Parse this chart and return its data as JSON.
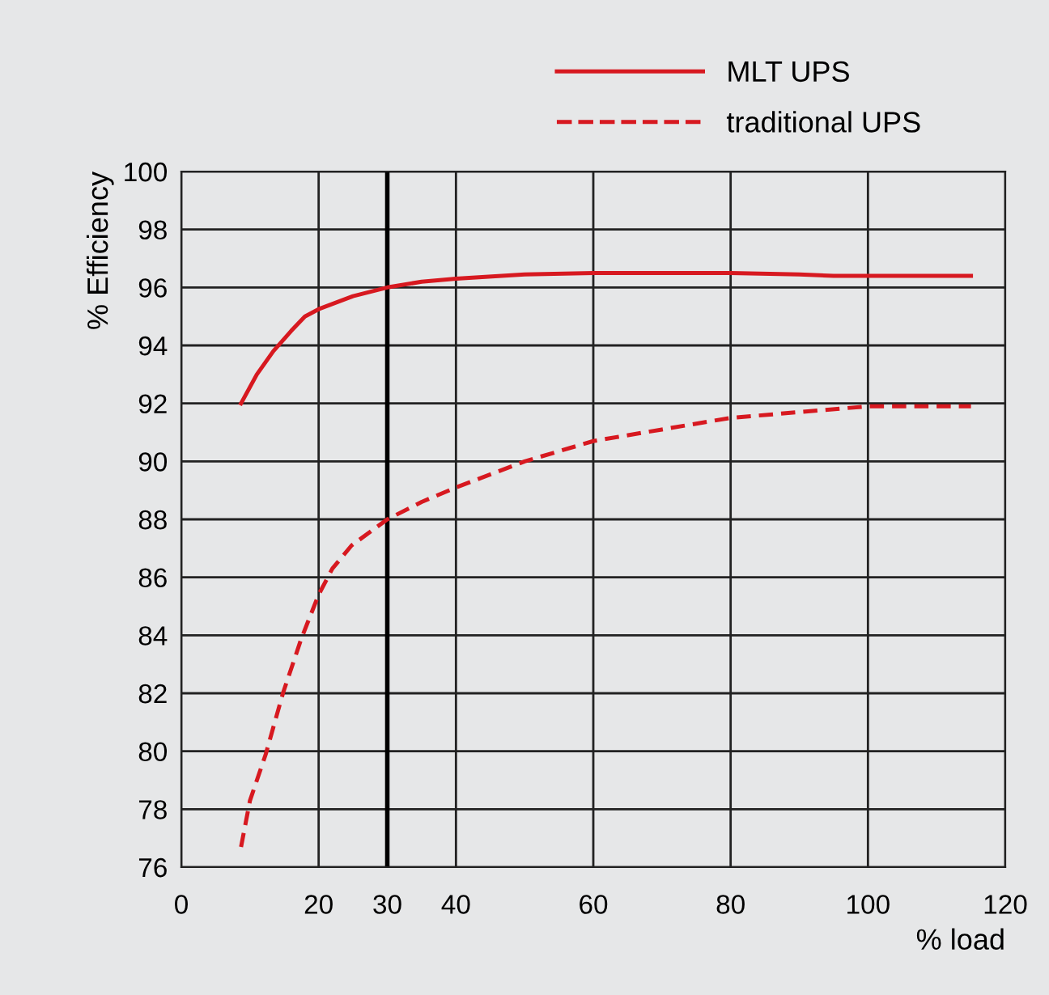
{
  "chart_data": {
    "type": "line",
    "xlabel": "% load",
    "ylabel": "% Efficiency",
    "xlim": [
      0,
      120
    ],
    "xticks": [
      0,
      20,
      30,
      40,
      60,
      80,
      100,
      120
    ],
    "ylim": [
      76,
      100
    ],
    "yticks": [
      76,
      78,
      80,
      82,
      84,
      86,
      88,
      90,
      92,
      94,
      96,
      98,
      100
    ],
    "grid": true,
    "legend": "top right",
    "marker": "none",
    "ref_lines": [
      {
        "axis": "x",
        "value": 30,
        "color": "#000000"
      }
    ],
    "series": [
      {
        "name": "MLT UPS",
        "color": "#d71920",
        "line_style": "solid",
        "x": [
          8.7,
          11,
          13.4,
          16,
          18,
          20,
          25,
          30,
          35,
          40,
          50,
          60,
          70,
          80,
          90,
          95,
          100,
          115
        ],
        "values": [
          92,
          93,
          93.8,
          94.5,
          95,
          95.25,
          95.7,
          96,
          96.2,
          96.3,
          96.45,
          96.5,
          96.5,
          96.5,
          96.45,
          96.4,
          96.4,
          96.4
        ]
      },
      {
        "name": "traditional UPS",
        "color": "#d71920",
        "line_style": "dashed",
        "x": [
          8.7,
          10,
          12.3,
          14.8,
          17.5,
          20,
          22,
          24.8,
          30,
          35,
          40,
          50,
          60,
          70,
          80,
          90,
          100,
          115
        ],
        "values": [
          76.7,
          78.3,
          79.9,
          82,
          83.9,
          85.4,
          86.3,
          87.1,
          88,
          88.6,
          89.1,
          90,
          90.7,
          91.1,
          91.5,
          91.7,
          91.9,
          91.9
        ]
      }
    ]
  }
}
